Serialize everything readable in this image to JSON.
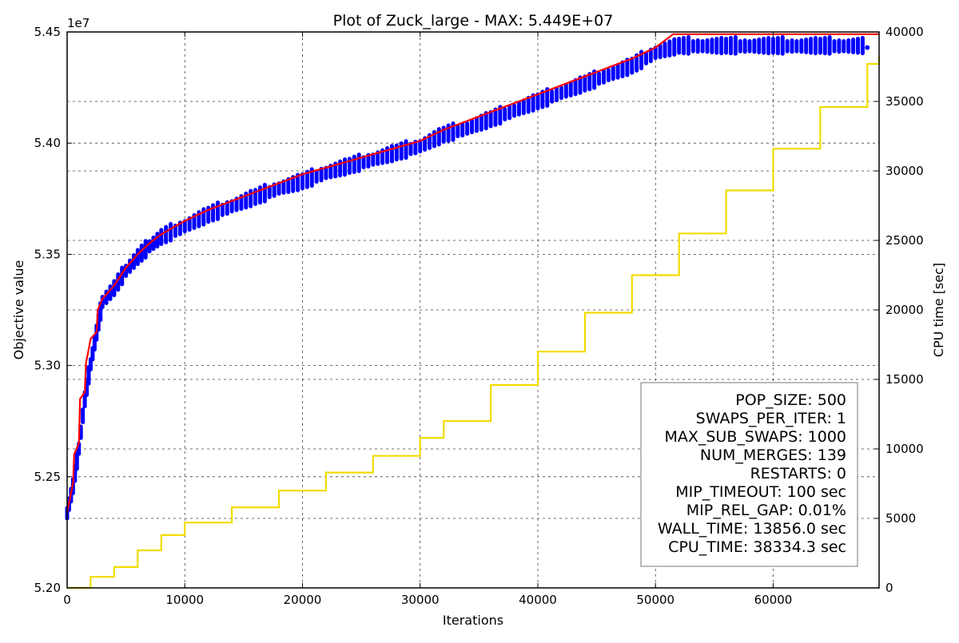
{
  "chart_data": {
    "type": "scatter",
    "title": "Plot of Zuck_large - MAX: 5.449E+07",
    "xlabel": "Iterations",
    "ylabel": "Objective value",
    "y2label": "CPU time [sec]",
    "y_offset_label": "1e7",
    "xlim": [
      0,
      69000
    ],
    "ylim": [
      52000000,
      54500000
    ],
    "y2lim": [
      0,
      40000
    ],
    "xticks": [
      0,
      10000,
      20000,
      30000,
      40000,
      50000,
      60000
    ],
    "xtick_labels": [
      "0",
      "10000",
      "20000",
      "30000",
      "40000",
      "50000",
      "60000"
    ],
    "yticks": [
      52000000,
      52500000,
      53000000,
      53500000,
      54000000,
      54500000
    ],
    "ytick_labels": [
      "5.20",
      "5.25",
      "5.30",
      "5.35",
      "5.40",
      "5.45"
    ],
    "y2ticks": [
      0,
      5000,
      10000,
      15000,
      20000,
      25000,
      30000,
      35000,
      40000
    ],
    "y2tick_labels": [
      "0",
      "5000",
      "10000",
      "15000",
      "20000",
      "25000",
      "30000",
      "35000",
      "40000"
    ],
    "grid": true,
    "series": [
      {
        "kind": "scatter",
        "axis": "left",
        "color": "#0000ff",
        "x": [
          0,
          500,
          1000,
          1500,
          2000,
          2500,
          3000,
          4000,
          5000,
          6000,
          7000,
          8000,
          10000,
          12000,
          14000,
          16000,
          18000,
          20000,
          22000,
          24000,
          26000,
          28000,
          30000,
          32000,
          34000,
          36000,
          38000,
          40000,
          42000,
          44000,
          46000,
          48000,
          50000,
          52000,
          54000,
          56000,
          58000,
          60000,
          62000,
          64000,
          66000,
          68000
        ],
        "y": [
          52330000,
          52450000,
          52620000,
          52840000,
          53000000,
          53140000,
          53280000,
          53340000,
          53420000,
          53480000,
          53530000,
          53570000,
          53620000,
          53670000,
          53710000,
          53750000,
          53790000,
          53820000,
          53860000,
          53890000,
          53920000,
          53950000,
          53980000,
          54030000,
          54060000,
          54100000,
          54140000,
          54180000,
          54220000,
          54260000,
          54300000,
          54340000,
          54400000,
          54430000,
          54430000,
          54430000,
          54430000,
          54430000,
          54430000,
          54430000,
          54430000,
          54430000
        ]
      },
      {
        "kind": "line",
        "axis": "left",
        "color": "#ff0000",
        "x": [
          0,
          500,
          600,
          1000,
          1100,
          1500,
          1600,
          2000,
          2500,
          2600,
          3000,
          4000,
          5000,
          6000,
          7000,
          8000,
          10000,
          12000,
          14000,
          16000,
          18000,
          20000,
          22000,
          24000,
          26000,
          28000,
          30000,
          32000,
          34000,
          36000,
          38000,
          40000,
          42000,
          44000,
          46000,
          48000,
          50000,
          51500,
          69000
        ],
        "y": [
          52340000,
          52470000,
          52600000,
          52650000,
          52850000,
          52880000,
          53010000,
          53120000,
          53150000,
          53250000,
          53300000,
          53360000,
          53440000,
          53500000,
          53550000,
          53590000,
          53650000,
          53700000,
          53740000,
          53780000,
          53820000,
          53860000,
          53890000,
          53920000,
          53950000,
          53980000,
          54010000,
          54060000,
          54100000,
          54140000,
          54180000,
          54220000,
          54260000,
          54300000,
          54340000,
          54380000,
          54430000,
          54490000,
          54490000
        ]
      },
      {
        "kind": "step",
        "axis": "right",
        "color": "#f2dc00",
        "x": [
          0,
          2000,
          4000,
          6000,
          8000,
          10000,
          14000,
          18000,
          22000,
          26000,
          30000,
          32000,
          36000,
          40000,
          44000,
          48000,
          52000,
          56000,
          60000,
          64000,
          68000,
          69000
        ],
        "y": [
          0,
          800,
          1500,
          2700,
          3800,
          4700,
          5800,
          7000,
          8300,
          9500,
          10800,
          12000,
          14600,
          17000,
          19800,
          22500,
          25500,
          28600,
          31600,
          34600,
          37700,
          38334
        ]
      }
    ],
    "legend_position": "lower-right",
    "legend": [
      "POP_SIZE: 500",
      "SWAPS_PER_ITER: 1",
      "MAX_SUB_SWAPS: 1000",
      "NUM_MERGES: 139",
      "RESTARTS: 0",
      "MIP_TIMEOUT: 100 sec",
      "MIP_REL_GAP: 0.01%",
      "WALL_TIME: 13856.0 sec",
      "CPU_TIME: 38334.3 sec"
    ]
  }
}
